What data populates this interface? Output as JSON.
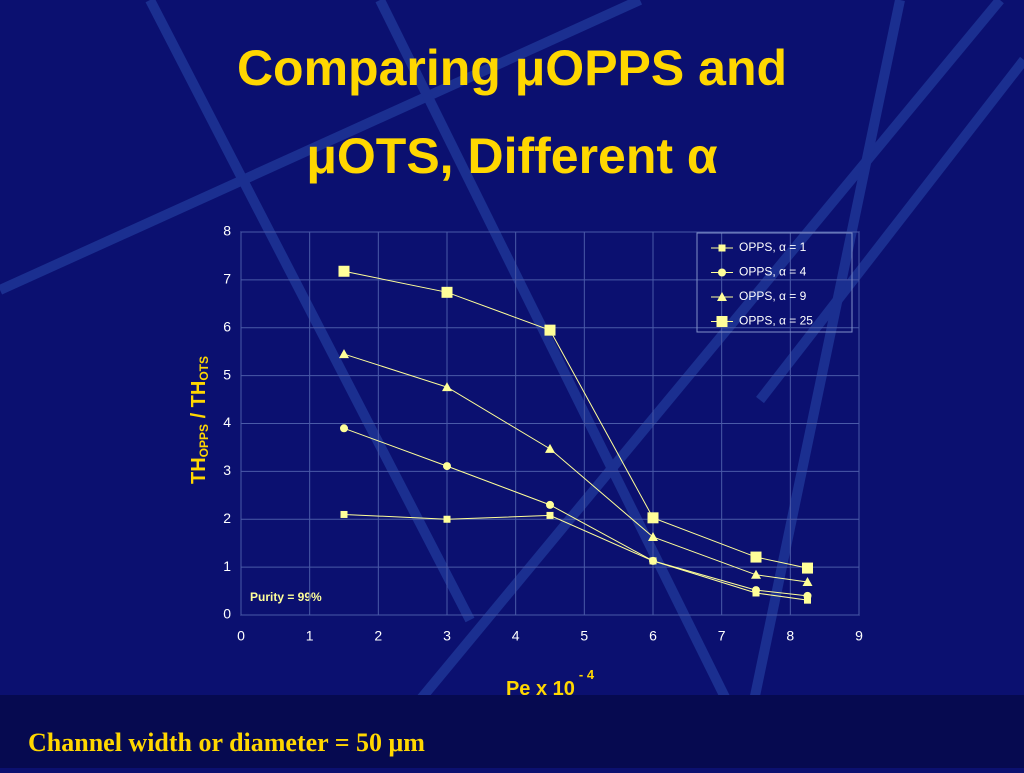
{
  "chart_data": {
    "type": "line",
    "title": [
      "Comparing μOPPS and",
      "μOTS, Different α"
    ],
    "y_label": [
      "TH",
      "OPPS",
      " / TH",
      "OTS"
    ],
    "x_label": [
      "Pe x 10",
      "- 4"
    ],
    "annotation": "Purity = 99%",
    "footer": "Channel width or diameter = 50 μm",
    "x": [
      1.5,
      3,
      4.5,
      6,
      7.5,
      8.25
    ],
    "series": [
      {
        "name": "OPPS, α = 1",
        "color": "#ffff99",
        "marker": "square",
        "values": [
          2.1,
          2.0,
          2.08,
          1.13,
          0.46,
          0.31
        ]
      },
      {
        "name": "OPPS, α = 4",
        "color": "#ffff99",
        "marker": "circle",
        "values": [
          3.9,
          3.11,
          2.3,
          1.13,
          0.52,
          0.4
        ]
      },
      {
        "name": "OPPS, α = 9",
        "color": "#ffff99",
        "marker": "triangle",
        "values": [
          5.45,
          4.76,
          3.47,
          1.63,
          0.84,
          0.69
        ]
      },
      {
        "name": "OPPS, α = 25",
        "color": "#ffff99",
        "marker": "bigsquare",
        "values": [
          7.18,
          6.74,
          5.95,
          2.03,
          1.21,
          0.98
        ]
      }
    ],
    "xlim": [
      0,
      9
    ],
    "xticks": [
      0,
      1,
      2,
      3,
      4,
      5,
      6,
      7,
      8,
      9
    ],
    "ylim": [
      0,
      8
    ],
    "yticks": [
      0,
      1,
      2,
      3,
      4,
      5,
      6,
      7,
      8
    ],
    "grid": true,
    "legend": "top-right"
  }
}
